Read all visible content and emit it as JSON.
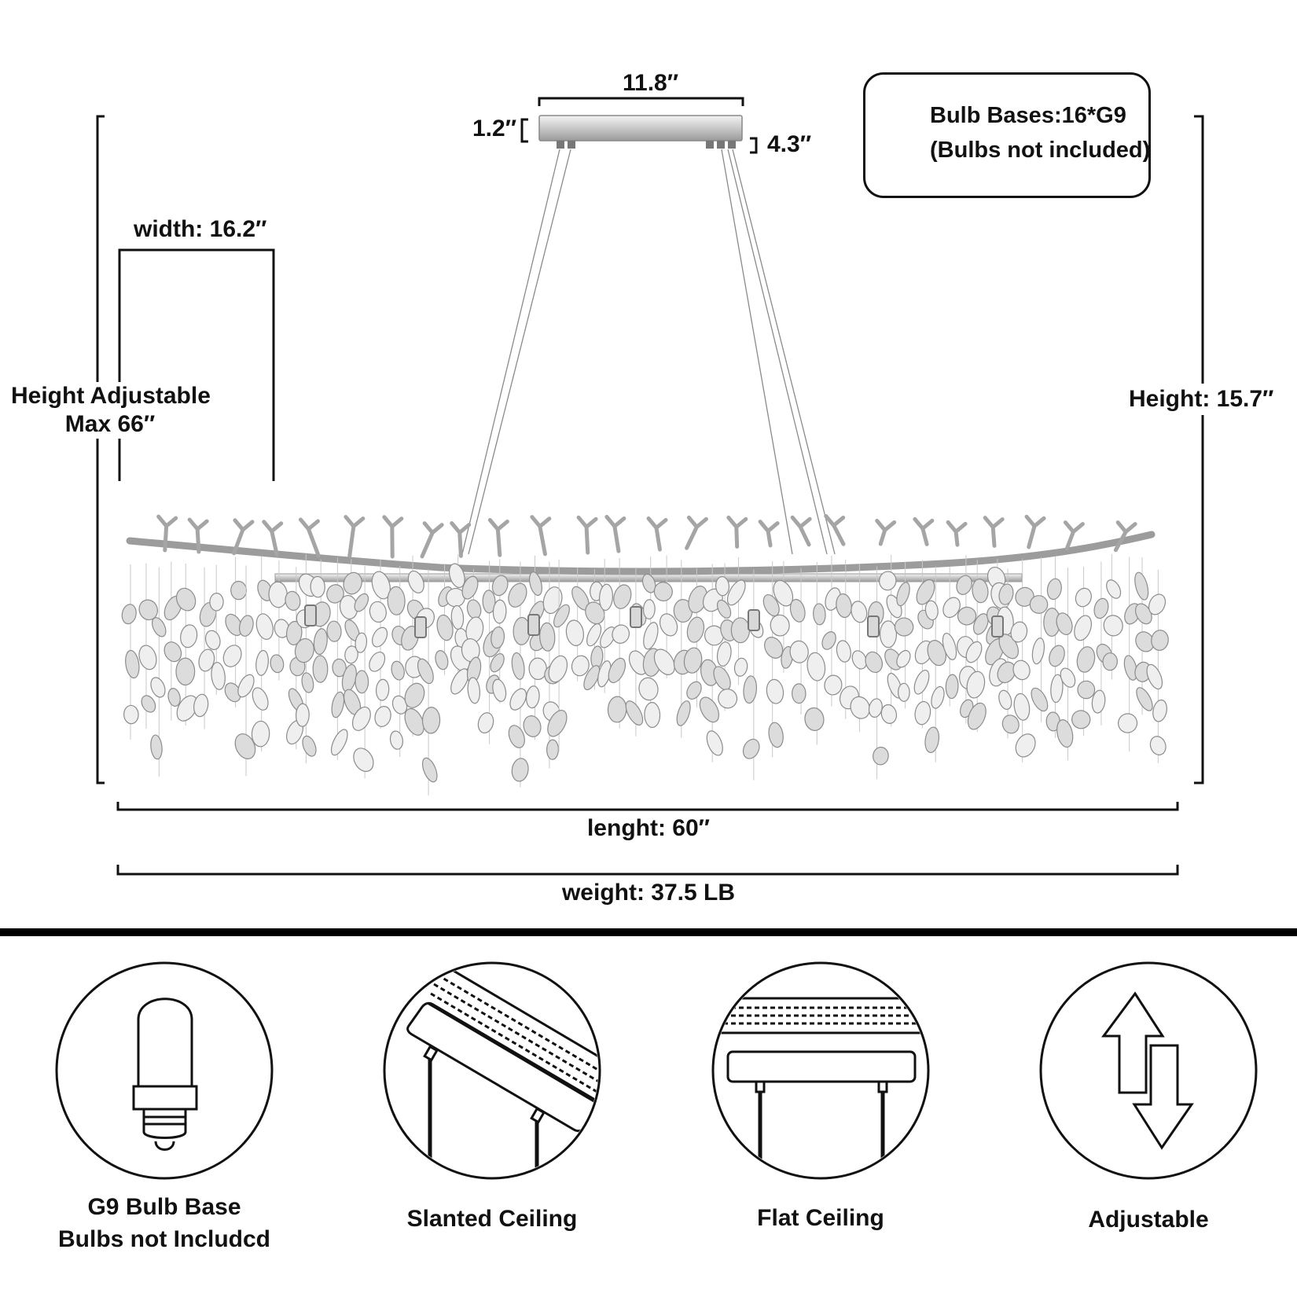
{
  "dimensions": {
    "canopy_length": "11.8″",
    "canopy_width": "1.2″",
    "canopy_height": "4.3″",
    "width": "width: 16.2″",
    "height_adjustable_line1": "Height Adjustable",
    "height_adjustable_line2": "Max 66″",
    "height": "Height: 15.7″",
    "length": "lenght: 60″",
    "weight": "weight: 37.5 LB"
  },
  "bulb_info": {
    "line1": "Bulb Bases:16*G9",
    "line2": "(Bulbs not included)"
  },
  "features": [
    {
      "icon": "g9-bulb-icon",
      "line1": "G9 Bulb Base",
      "line2": "Bulbs not Includcd"
    },
    {
      "icon": "slanted-ceiling-icon",
      "line1": "Slanted Ceiling"
    },
    {
      "icon": "flat-ceiling-icon",
      "line1": "Flat Ceiling"
    },
    {
      "icon": "adjustable-arrows-icon",
      "line1": "Adjustable"
    }
  ]
}
